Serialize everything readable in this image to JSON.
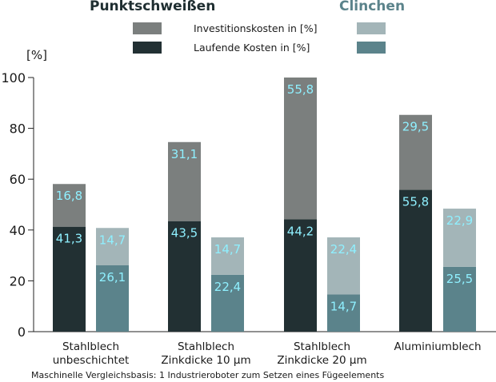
{
  "chart_data": {
    "type": "bar",
    "stacked": true,
    "groups": [
      {
        "name": "Punktschweißen"
      },
      {
        "name": "Clinchen"
      }
    ],
    "legend": {
      "investment_label": "Investitionskosten in [%]",
      "running_label": "Laufende Kosten in [%]"
    },
    "ylabel": "[%]",
    "ylim": [
      0,
      100
    ],
    "yticks": [
      "0",
      "20",
      "40",
      "60",
      "80",
      "100"
    ],
    "categories": [
      {
        "line1": "Stahlblech",
        "line2": "unbeschichtet"
      },
      {
        "line1": "Stahlblech",
        "line2": "Zinkdicke 10 µm"
      },
      {
        "line1": "Stahlblech",
        "line2": "Zinkdicke 20 µm"
      },
      {
        "line1": "Aluminiumblech",
        "line2": ""
      }
    ],
    "series": [
      {
        "name": "Laufende Kosten in [%]",
        "group": "Punktschweißen",
        "values": [
          41.3,
          43.5,
          44.2,
          55.8
        ],
        "labels": [
          "41,3",
          "43,5",
          "44,2",
          "55,8"
        ]
      },
      {
        "name": "Investitionskosten in [%]",
        "group": "Punktschweißen",
        "values": [
          16.8,
          31.1,
          55.8,
          29.5
        ],
        "labels": [
          "16,8",
          "31,1",
          "55,8",
          "29,5"
        ]
      },
      {
        "name": "Laufende Kosten in [%]",
        "group": "Clinchen",
        "values": [
          26.1,
          22.4,
          14.7,
          25.5
        ],
        "labels": [
          "26,1",
          "22,4",
          "14,7",
          "25,5"
        ]
      },
      {
        "name": "Investitionskosten in [%]",
        "group": "Clinchen",
        "values": [
          14.7,
          14.7,
          22.4,
          22.9
        ],
        "labels": [
          "14,7",
          "14,7",
          "22,4",
          "22,9"
        ]
      }
    ],
    "colors": {
      "punkt_investment": "#7b7f7e",
      "punkt_running": "#223033",
      "clinch_investment": "#a3b5b8",
      "clinch_running": "#5b838b",
      "data_label": "#8ff0ff"
    },
    "footnote": "Maschinelle Vergleichsbasis: 1 Industrieroboter zum Setzen eines Fügeelements"
  }
}
